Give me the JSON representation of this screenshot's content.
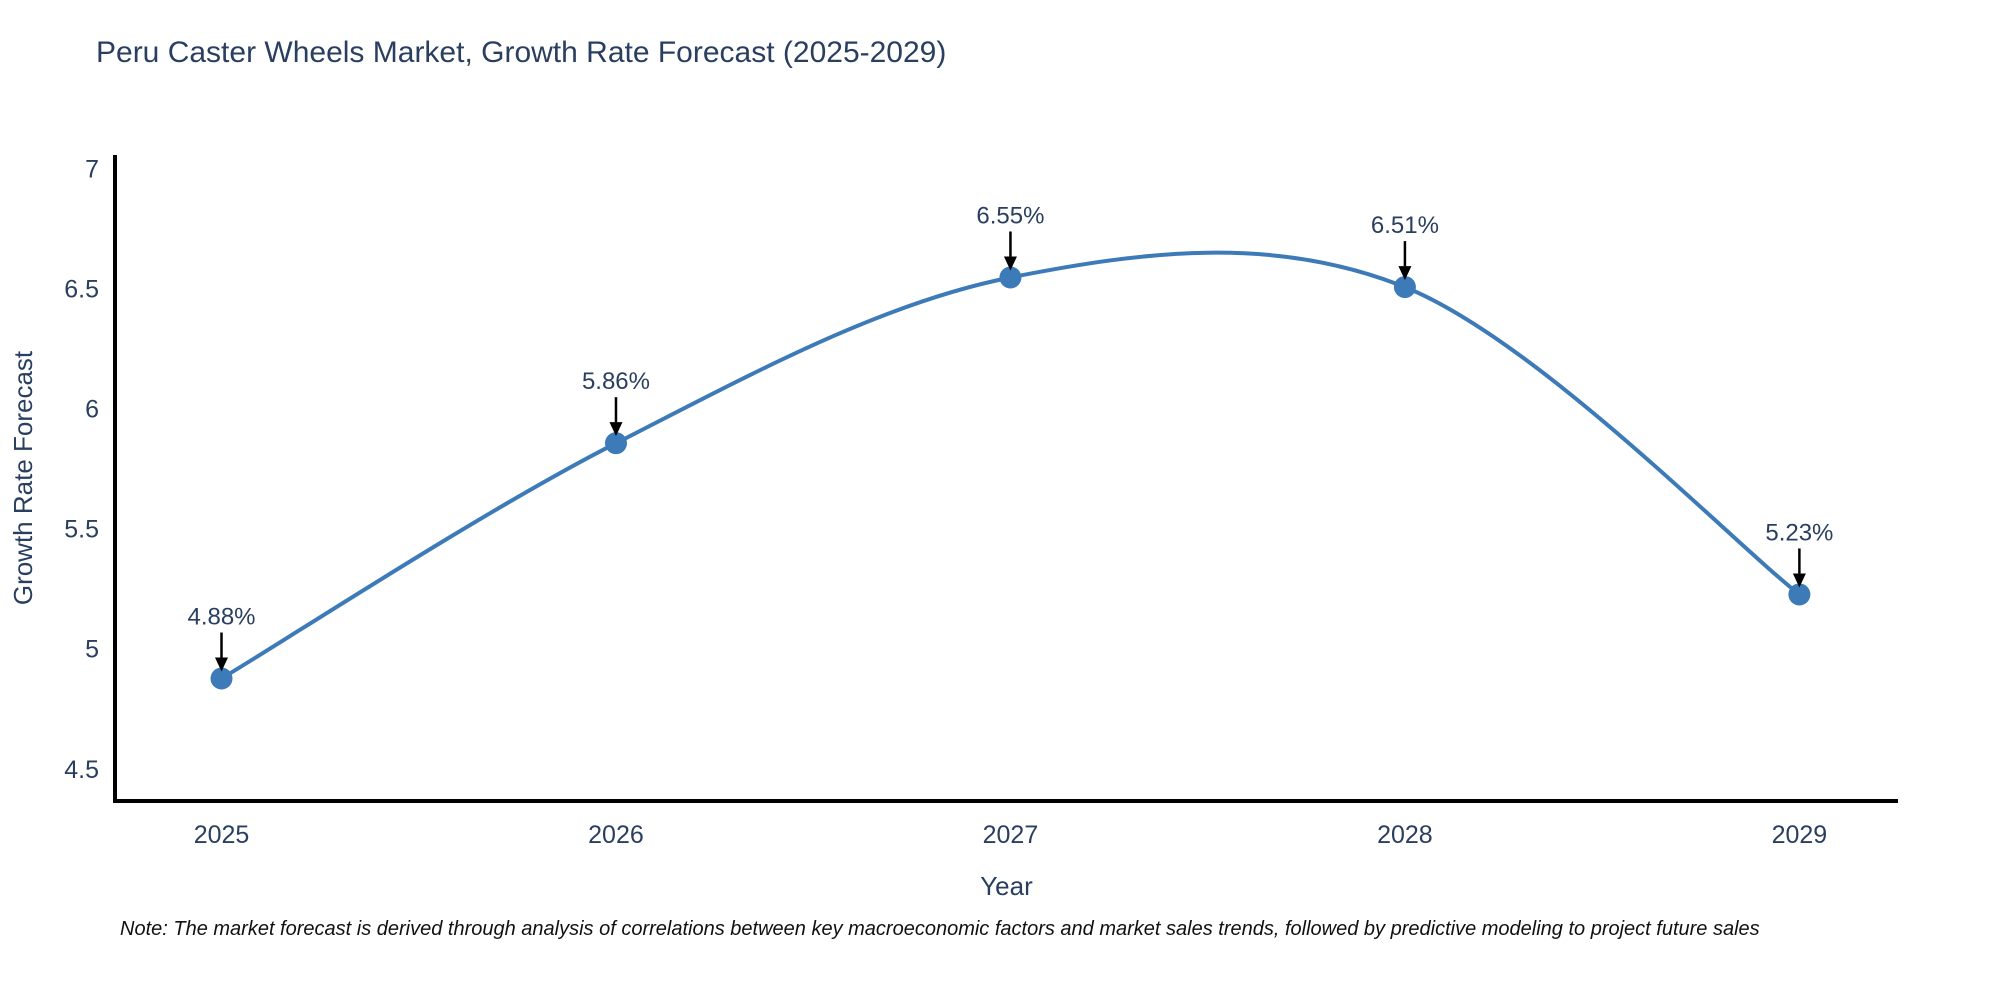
{
  "page": {
    "note": "Note: The market forecast is derived through analysis of correlations between key macroeconomic factors and market sales trends, followed by predictive modeling to project future sales"
  },
  "chart_data": {
    "type": "line",
    "title": "Peru Caster Wheels Market, Growth Rate Forecast (2025-2029)",
    "xlabel": "Year",
    "ylabel": "Growth Rate Forecast",
    "x": [
      2025,
      2026,
      2027,
      2028,
      2029
    ],
    "y": [
      4.88,
      5.86,
      6.55,
      6.51,
      5.23
    ],
    "point_labels": [
      "4.88%",
      "5.86%",
      "6.55%",
      "6.51%",
      "5.23%"
    ],
    "x_tick_labels": [
      "2025",
      "2026",
      "2027",
      "2028",
      "2029"
    ],
    "y_ticks": [
      4.5,
      5,
      5.5,
      6,
      6.5,
      7
    ],
    "xlim": [
      2024.73,
      2029.25
    ],
    "ylim": [
      4.37,
      7.06
    ],
    "line_shape": "spline",
    "grid": false,
    "legend": "none",
    "colors": {
      "line": "#3d7ab8",
      "marker": "#3d7ab8",
      "axis_line": "#000000",
      "arrow": "#000000",
      "text": "#2a3f5f",
      "note_text": "#111111",
      "background": "#ffffff"
    }
  }
}
